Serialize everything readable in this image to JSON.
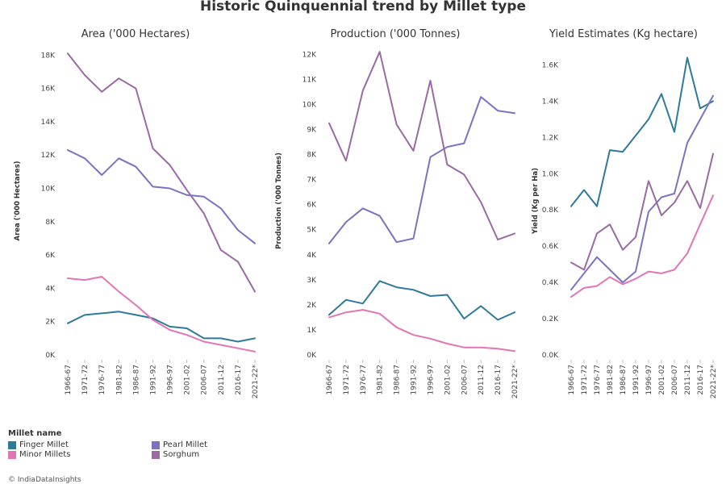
{
  "title": "Historic Quinquennial trend by Millet type",
  "legend": {
    "title": "Millet name",
    "items": [
      {
        "name": "Finger Millet",
        "color": "#2e7a9a"
      },
      {
        "name": "Pearl Millet",
        "color": "#7b72c2"
      },
      {
        "name": "Minor Millets",
        "color": "#e275b5"
      },
      {
        "name": "Sorghum",
        "color": "#9a6aa3"
      }
    ]
  },
  "credit": "© IndiaDataInsights",
  "chart_data": [
    {
      "type": "line",
      "title": "Area ('000 Hectares)",
      "ylabel": "Area ('000 Hectares)",
      "xlabel": "",
      "categories": [
        "1966-67",
        "1971-72",
        "1976-77",
        "1981-82",
        "1986-87",
        "1991-92",
        "1996-97",
        "2001-02",
        "2006-07",
        "2011-12",
        "2016-17",
        "2021-22*"
      ],
      "ylim": [
        0,
        18500
      ],
      "yticks": [
        0,
        2000,
        4000,
        6000,
        8000,
        10000,
        12000,
        14000,
        16000,
        18000
      ],
      "ytick_labels": [
        "0K",
        "2K",
        "4K",
        "6K",
        "8K",
        "10K",
        "12K",
        "14K",
        "16K",
        "18K"
      ],
      "grid": false,
      "series": [
        {
          "name": "Finger Millet",
          "values": [
            1900,
            2400,
            2500,
            2600,
            2400,
            2200,
            1700,
            1600,
            1000,
            1000,
            800,
            1000
          ]
        },
        {
          "name": "Pearl Millet",
          "values": [
            12300,
            11800,
            10800,
            11800,
            11300,
            10100,
            10000,
            9600,
            9500,
            8800,
            7500,
            6700
          ]
        },
        {
          "name": "Minor Millets",
          "values": [
            4600,
            4500,
            4700,
            3800,
            3000,
            2100,
            1500,
            1200,
            800,
            600,
            400,
            200
          ]
        },
        {
          "name": "Sorghum",
          "values": [
            18100,
            16800,
            15800,
            16600,
            16000,
            12400,
            11400,
            9900,
            8500,
            6300,
            5600,
            3800
          ]
        }
      ]
    },
    {
      "type": "line",
      "title": "Production ('000 Tonnes)",
      "ylabel": "Production ('000 Tonnes)",
      "xlabel": "",
      "categories": [
        "1966-67",
        "1971-72",
        "1976-77",
        "1981-82",
        "1986-87",
        "1991-92",
        "1996-97",
        "2001-02",
        "2006-07",
        "2011-12",
        "2016-17",
        "2021-22*"
      ],
      "ylim": [
        0,
        12300
      ],
      "yticks": [
        0,
        1000,
        2000,
        3000,
        4000,
        5000,
        6000,
        7000,
        8000,
        9000,
        10000,
        11000,
        12000
      ],
      "ytick_labels": [
        "0K",
        "1K",
        "2K",
        "3K",
        "4K",
        "5K",
        "6K",
        "7K",
        "8K",
        "9K",
        "10K",
        "11K",
        "12K"
      ],
      "grid": false,
      "series": [
        {
          "name": "Finger Millet",
          "values": [
            1600,
            2200,
            2050,
            2950,
            2700,
            2600,
            2350,
            2400,
            1450,
            1950,
            1400,
            1700
          ]
        },
        {
          "name": "Pearl Millet",
          "values": [
            4450,
            5300,
            5850,
            5550,
            4500,
            4650,
            7900,
            8300,
            8450,
            10300,
            9750,
            9650
          ]
        },
        {
          "name": "Minor Millets",
          "values": [
            1500,
            1700,
            1800,
            1650,
            1100,
            800,
            650,
            450,
            300,
            300,
            250,
            150
          ]
        },
        {
          "name": "Sorghum",
          "values": [
            9250,
            7750,
            10550,
            12100,
            9200,
            8150,
            10950,
            7600,
            7200,
            6100,
            4600,
            4850
          ]
        }
      ]
    },
    {
      "type": "line",
      "title": "Yield Estimates (Kg hectare)",
      "ylabel": "Yield (Kg per Ha)",
      "xlabel": "",
      "categories": [
        "1966-67",
        "1971-72",
        "1976-77",
        "1981-82",
        "1986-87",
        "1991-92",
        "1996-97",
        "2001-02",
        "2006-07",
        "2011-12",
        "2016-17",
        "2021-22*"
      ],
      "ylim": [
        0,
        1700
      ],
      "yticks": [
        0,
        200,
        400,
        600,
        800,
        1000,
        1200,
        1400,
        1600
      ],
      "ytick_labels": [
        "0.0K",
        "0.2K",
        "0.4K",
        "0.6K",
        "0.8K",
        "1.0K",
        "1.2K",
        "1.4K",
        "1.6K"
      ],
      "grid": false,
      "series": [
        {
          "name": "Finger Millet",
          "values": [
            820,
            910,
            820,
            1130,
            1120,
            1210,
            1300,
            1440,
            1230,
            1640,
            1360,
            1400
          ]
        },
        {
          "name": "Pearl Millet",
          "values": [
            360,
            450,
            540,
            470,
            400,
            460,
            790,
            870,
            890,
            1170,
            1300,
            1430
          ]
        },
        {
          "name": "Minor Millets",
          "values": [
            320,
            370,
            380,
            430,
            390,
            420,
            460,
            450,
            470,
            560,
            720,
            880
          ]
        },
        {
          "name": "Sorghum",
          "values": [
            510,
            470,
            670,
            720,
            580,
            650,
            960,
            770,
            840,
            960,
            810,
            1110
          ]
        }
      ]
    }
  ]
}
